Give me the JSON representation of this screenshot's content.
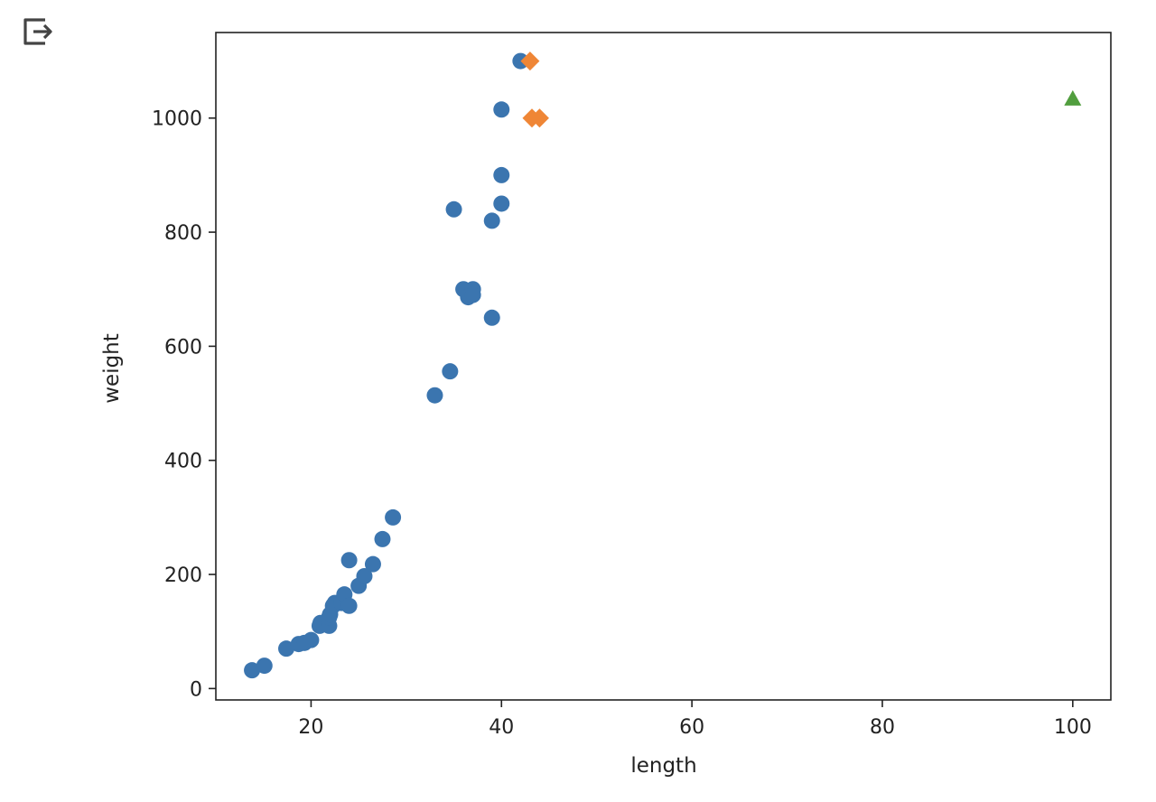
{
  "output_toolbar": {
    "icon": "output-redirect-icon"
  },
  "chart_data": {
    "type": "scatter",
    "xlabel": "length",
    "ylabel": "weight",
    "xlim": [
      10,
      104
    ],
    "ylim": [
      -20,
      1150
    ],
    "x_ticks": [
      20,
      40,
      60,
      80,
      100
    ],
    "y_ticks": [
      0,
      200,
      400,
      600,
      800,
      1000
    ],
    "grid": false,
    "series": [
      {
        "marker": "circle",
        "color": "#3b75af",
        "points": [
          [
            13.8,
            32
          ],
          [
            15.1,
            40
          ],
          [
            17.4,
            70
          ],
          [
            18.7,
            78
          ],
          [
            19.3,
            80
          ],
          [
            20.0,
            85
          ],
          [
            20.9,
            110
          ],
          [
            21.0,
            115
          ],
          [
            21.9,
            110
          ],
          [
            21.9,
            125
          ],
          [
            22.0,
            130
          ],
          [
            22.3,
            145
          ],
          [
            22.5,
            150
          ],
          [
            23.2,
            150
          ],
          [
            23.5,
            165
          ],
          [
            24.0,
            145
          ],
          [
            24.0,
            225
          ],
          [
            25.0,
            180
          ],
          [
            25.6,
            197
          ],
          [
            26.5,
            218
          ],
          [
            27.5,
            262
          ],
          [
            28.6,
            300
          ],
          [
            33.0,
            514
          ],
          [
            34.6,
            556
          ],
          [
            35.0,
            840
          ],
          [
            36.0,
            700
          ],
          [
            36.5,
            686
          ],
          [
            37.0,
            700
          ],
          [
            37.0,
            690
          ],
          [
            39.0,
            650
          ],
          [
            39.0,
            820
          ],
          [
            40.0,
            850
          ],
          [
            40.0,
            900
          ],
          [
            40.0,
            1015
          ],
          [
            42.0,
            1100
          ]
        ]
      },
      {
        "marker": "diamond",
        "color": "#ef8636",
        "points": [
          [
            43.0,
            1100
          ],
          [
            43.2,
            1000
          ],
          [
            44.0,
            1000
          ]
        ]
      },
      {
        "marker": "triangle",
        "color": "#519e3e",
        "points": [
          [
            100,
            1033
          ]
        ]
      }
    ]
  }
}
